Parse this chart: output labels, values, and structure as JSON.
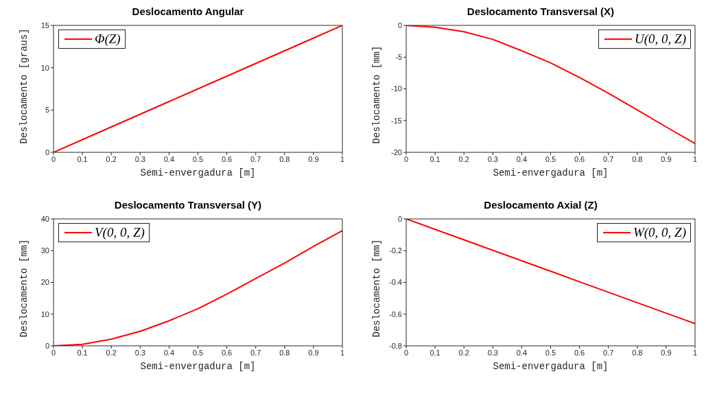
{
  "chart_data": [
    {
      "type": "line",
      "title": "Deslocamento Angular",
      "xlabel": "Semi-envergadura [m]",
      "ylabel": "Deslocamento [graus]",
      "x": [
        0,
        0.1,
        0.2,
        0.3,
        0.4,
        0.5,
        0.6,
        0.7,
        0.8,
        0.9,
        1
      ],
      "xlim": [
        0,
        1
      ],
      "xticks": [
        0,
        0.1,
        0.2,
        0.3,
        0.4,
        0.5,
        0.6,
        0.7,
        0.8,
        0.9,
        1
      ],
      "ylim": [
        0,
        15
      ],
      "yticks": [
        0,
        5,
        10,
        15
      ],
      "legend": "top left",
      "series": [
        {
          "name": "Φ(Z)",
          "color": "#ff0000",
          "values": [
            0,
            1.5,
            3,
            4.5,
            6,
            7.5,
            9,
            10.5,
            12,
            13.5,
            15
          ]
        }
      ]
    },
    {
      "type": "line",
      "title": "Deslocamento Transversal (X)",
      "xlabel": "Semi-envergadura [m]",
      "ylabel": "Deslocamento [mm]",
      "x": [
        0,
        0.1,
        0.2,
        0.3,
        0.4,
        0.5,
        0.6,
        0.7,
        0.8,
        0.9,
        1
      ],
      "xlim": [
        0,
        1
      ],
      "xticks": [
        0,
        0.1,
        0.2,
        0.3,
        0.4,
        0.5,
        0.6,
        0.7,
        0.8,
        0.9,
        1
      ],
      "ylim": [
        -20,
        0
      ],
      "yticks": [
        -20,
        -15,
        -10,
        -5,
        0
      ],
      "legend": "top right",
      "series": [
        {
          "name": "U(0, 0, Z)",
          "color": "#ff0000",
          "values": [
            0,
            -0.3,
            -1.0,
            -2.2,
            -4.0,
            -5.9,
            -8.2,
            -10.7,
            -13.3,
            -16.0,
            -18.6
          ]
        }
      ]
    },
    {
      "type": "line",
      "title": "Deslocamento Transversal (Y)",
      "xlabel": "Semi-envergadura [m]",
      "ylabel": "Deslocamento [mm]",
      "x": [
        0,
        0.1,
        0.2,
        0.3,
        0.4,
        0.5,
        0.6,
        0.7,
        0.8,
        0.9,
        1
      ],
      "xlim": [
        0,
        1
      ],
      "xticks": [
        0,
        0.1,
        0.2,
        0.3,
        0.4,
        0.5,
        0.6,
        0.7,
        0.8,
        0.9,
        1
      ],
      "ylim": [
        0,
        40
      ],
      "yticks": [
        0,
        10,
        20,
        30,
        40
      ],
      "legend": "top left",
      "series": [
        {
          "name": "V(0, 0, Z)",
          "color": "#ff0000",
          "values": [
            0,
            0.5,
            2.1,
            4.6,
            7.9,
            11.7,
            16.3,
            21.2,
            26.1,
            31.3,
            36.3
          ]
        }
      ]
    },
    {
      "type": "line",
      "title": "Deslocamento Axial (Z)",
      "xlabel": "Semi-envergadura [m]",
      "ylabel": "Deslocamento [mm]",
      "x": [
        0,
        0.1,
        0.2,
        0.3,
        0.4,
        0.5,
        0.6,
        0.7,
        0.8,
        0.9,
        1
      ],
      "xlim": [
        0,
        1
      ],
      "xticks": [
        0,
        0.1,
        0.2,
        0.3,
        0.4,
        0.5,
        0.6,
        0.7,
        0.8,
        0.9,
        1
      ],
      "ylim": [
        -0.8,
        0
      ],
      "yticks": [
        -0.8,
        -0.6,
        -0.4,
        -0.2,
        0
      ],
      "legend": "top right",
      "series": [
        {
          "name": "W(0, 0, Z)",
          "color": "#ff0000",
          "values": [
            0,
            -0.066,
            -0.132,
            -0.198,
            -0.264,
            -0.33,
            -0.396,
            -0.462,
            -0.528,
            -0.594,
            -0.66
          ]
        }
      ]
    }
  ]
}
